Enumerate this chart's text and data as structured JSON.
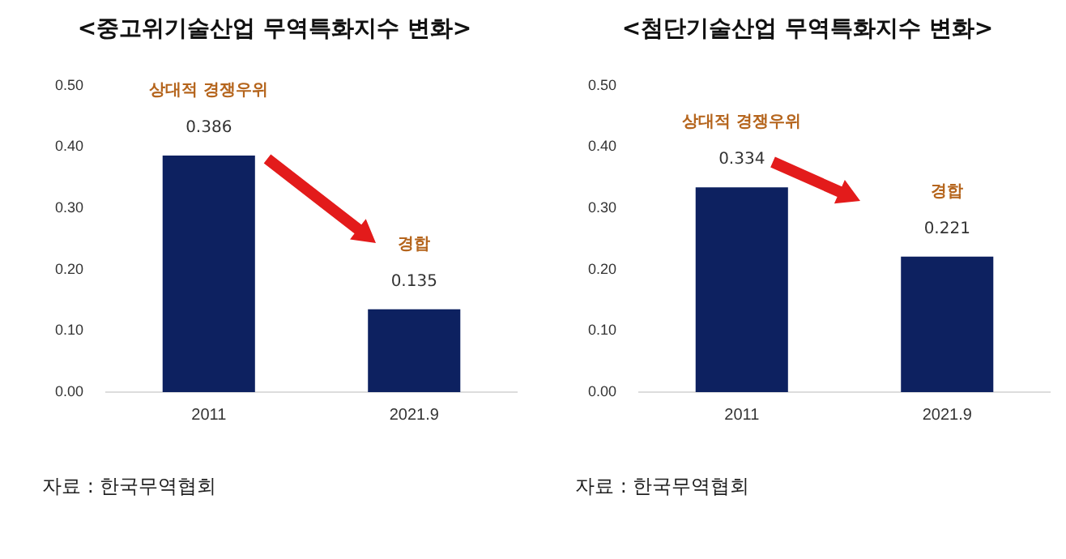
{
  "chart_data": [
    {
      "type": "bar",
      "title": "<중고위기술산업 무역특화지수 변화>",
      "categories": [
        "2011",
        "2021.9"
      ],
      "values": [
        0.386,
        0.135
      ],
      "color": "#0d2160",
      "ylim": [
        0,
        0.5
      ],
      "yticks": [
        {
          "value": 0,
          "label": "0.00"
        },
        {
          "value": 0.1,
          "label": "0.10"
        },
        {
          "value": 0.2,
          "label": "0.20"
        },
        {
          "value": 0.3,
          "label": "0.30"
        },
        {
          "value": 0.4,
          "label": "0.40"
        },
        {
          "value": 0.5,
          "label": "0.50"
        }
      ],
      "grid": false,
      "legend": false,
      "data_labels": true,
      "annotations": [
        "상대적 경쟁우위",
        "경합",
        "자료 : 한국무역협회"
      ]
    },
    {
      "type": "bar",
      "title": "<첨단기술산업 무역특화지수 변화>",
      "categories": [
        "2011",
        "2021.9"
      ],
      "values": [
        0.334,
        0.221
      ],
      "color": "#0d2160",
      "ylim": [
        0,
        0.5
      ],
      "yticks": [
        {
          "value": 0,
          "label": "0.00"
        },
        {
          "value": 0.1,
          "label": "0.10"
        },
        {
          "value": 0.2,
          "label": "0.20"
        },
        {
          "value": 0.3,
          "label": "0.30"
        },
        {
          "value": 0.4,
          "label": "0.40"
        },
        {
          "value": 0.5,
          "label": "0.50"
        }
      ],
      "grid": false,
      "legend": false,
      "data_labels": true,
      "annotations": [
        "상대적 경쟁우위",
        "경합",
        "자료 : 한국무역협회"
      ]
    }
  ]
}
